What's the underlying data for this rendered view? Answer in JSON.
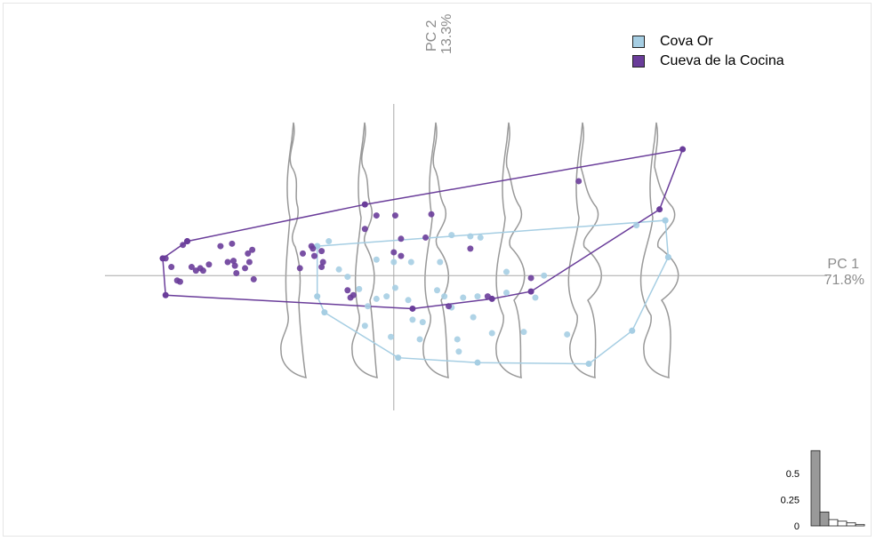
{
  "legend": {
    "items": [
      {
        "label": "Cova Or",
        "color": "#a6cee3"
      },
      {
        "label": "Cueva de la Cocina",
        "color": "#6a3d9a"
      }
    ]
  },
  "axes": {
    "pc1": {
      "name": "PC 1",
      "pct": "71.8%"
    },
    "pc2": {
      "name": "PC 2",
      "pct": "13.3%"
    }
  },
  "chart_data": [
    {
      "type": "scatter",
      "title": "",
      "xlabel": "PC 1 71.8%",
      "ylabel": "PC 2 13.3%",
      "xlim": [
        -0.2,
        0.3
      ],
      "ylim": [
        -0.11,
        0.14
      ],
      "grid": false,
      "legend_position": "top-right",
      "series": [
        {
          "name": "Cova Or",
          "color": "#a6cee3",
          "points": [
            [
              -0.053,
              0.024
            ],
            [
              -0.038,
              0.005
            ],
            [
              -0.032,
              -0.001
            ],
            [
              -0.024,
              -0.011
            ],
            [
              -0.018,
              -0.025
            ],
            [
              -0.012,
              -0.019
            ],
            [
              -0.02,
              -0.041
            ],
            [
              -0.012,
              0.013
            ],
            [
              0,
              0.011
            ],
            [
              0.012,
              0.011
            ],
            [
              0.032,
              0.011
            ],
            [
              -0.005,
              -0.017
            ],
            [
              0.001,
              -0.01
            ],
            [
              0.01,
              -0.02
            ],
            [
              0.013,
              -0.036
            ],
            [
              0.02,
              -0.038
            ],
            [
              0.035,
              -0.017
            ],
            [
              0.04,
              -0.026
            ],
            [
              0.048,
              -0.018
            ],
            [
              0.058,
              -0.017
            ],
            [
              0.078,
              -0.014
            ],
            [
              0.098,
              -0.018
            ],
            [
              0.078,
              0.003
            ],
            [
              0.068,
              -0.047
            ],
            [
              0.044,
              -0.052
            ],
            [
              0.018,
              -0.052
            ],
            [
              0.055,
              -0.034
            ],
            [
              0.045,
              -0.062
            ],
            [
              0.09,
              -0.046
            ],
            [
              0.04,
              0.033
            ],
            [
              0.053,
              0.032
            ],
            [
              0.06,
              0.031
            ],
            [
              0.104,
              0.0
            ],
            [
              0.168,
              0.041
            ],
            [
              0.188,
              0.045
            ],
            [
              0.19,
              0.015
            ],
            [
              0.165,
              -0.045
            ],
            [
              0.12,
              -0.048
            ],
            [
              0.03,
              -0.012
            ],
            [
              -0.045,
              0.028
            ],
            [
              -0.002,
              -0.05
            ]
          ],
          "hull": [
            [
              -0.053,
              0.024
            ],
            [
              0.188,
              0.045
            ],
            [
              0.19,
              0.015
            ],
            [
              0.165,
              -0.045
            ],
            [
              0.135,
              -0.072
            ],
            [
              0.058,
              -0.071
            ],
            [
              0.003,
              -0.067
            ],
            [
              -0.048,
              -0.03
            ],
            [
              -0.053,
              -0.017
            ]
          ]
        },
        {
          "name": "Cueva de la Cocina",
          "color": "#6a3d9a",
          "points": [
            [
              -0.158,
              0.014
            ],
            [
              -0.154,
              0.007
            ],
            [
              -0.146,
              0.025
            ],
            [
              -0.143,
              0.028
            ],
            [
              -0.15,
              -0.004
            ],
            [
              -0.148,
              -0.005
            ],
            [
              -0.14,
              0.007
            ],
            [
              -0.137,
              0.004
            ],
            [
              -0.134,
              0.006
            ],
            [
              -0.132,
              0.004
            ],
            [
              -0.128,
              0.009
            ],
            [
              -0.12,
              0.024
            ],
            [
              -0.115,
              0.011
            ],
            [
              -0.112,
              0.026
            ],
            [
              -0.11,
              0.008
            ],
            [
              -0.111,
              0.012
            ],
            [
              -0.109,
              0.002
            ],
            [
              -0.103,
              0.006
            ],
            [
              -0.101,
              0.018
            ],
            [
              -0.1,
              0.011
            ],
            [
              -0.098,
              0.021
            ],
            [
              -0.097,
              -0.003
            ],
            [
              -0.063,
              0.018
            ],
            [
              -0.065,
              0.006
            ],
            [
              -0.057,
              0.024
            ],
            [
              -0.056,
              0.022
            ],
            [
              -0.055,
              0.016
            ],
            [
              -0.05,
              0.007
            ],
            [
              -0.049,
              0.011
            ],
            [
              -0.05,
              0.02
            ],
            [
              -0.032,
              -0.012
            ],
            [
              -0.03,
              -0.018
            ],
            [
              -0.028,
              -0.016
            ],
            [
              0.001,
              0.049
            ],
            [
              -0.02,
              0.038
            ],
            [
              0.026,
              0.05
            ],
            [
              0.005,
              0.03
            ],
            [
              0.022,
              0.031
            ],
            [
              0.053,
              0.022
            ],
            [
              -0.012,
              0.049
            ],
            [
              0.065,
              -0.017
            ],
            [
              0.095,
              -0.002
            ],
            [
              0.128,
              0.077
            ],
            [
              0.038,
              -0.025
            ],
            [
              0.005,
              0.016
            ],
            [
              0.0,
              0.019
            ]
          ],
          "hull": [
            [
              -0.16,
              0.014
            ],
            [
              -0.143,
              0.028
            ],
            [
              -0.02,
              0.058
            ],
            [
              0.2,
              0.103
            ],
            [
              0.184,
              0.054
            ],
            [
              0.095,
              -0.013
            ],
            [
              0.068,
              -0.019
            ],
            [
              0.013,
              -0.027
            ],
            [
              -0.158,
              -0.016
            ]
          ]
        }
      ]
    },
    {
      "type": "bar",
      "title": "",
      "yticks": [
        0,
        0.25,
        0.5
      ],
      "ylim": [
        0,
        0.75
      ],
      "values": [
        0.718,
        0.133,
        0.06,
        0.045,
        0.03,
        0.014
      ],
      "highlighted": 2
    }
  ]
}
